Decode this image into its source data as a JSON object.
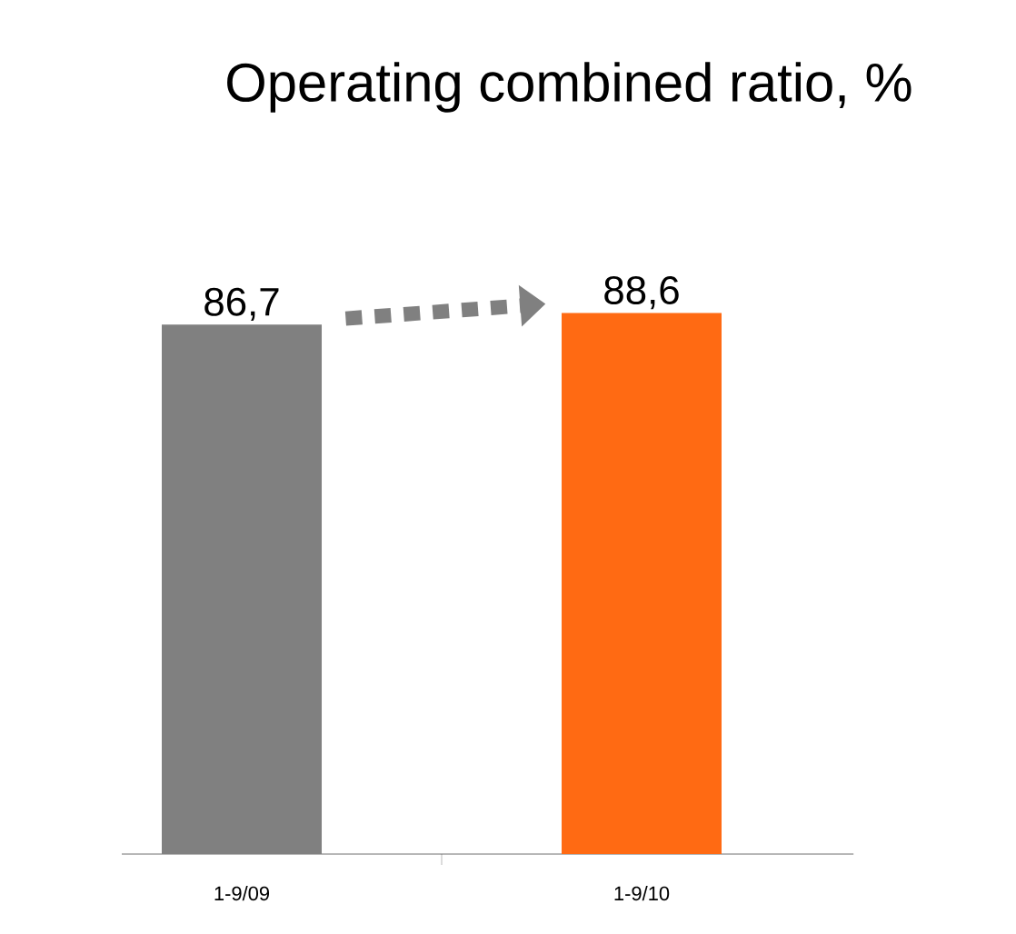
{
  "chart_data": {
    "type": "bar",
    "title": "Operating combined ratio, %",
    "categories": [
      "1-9/09",
      "1-9/10"
    ],
    "values": [
      86.7,
      88.6
    ],
    "colors": [
      "#808080",
      "#ff6a13"
    ],
    "value_labels": [
      "86,7",
      "88,6"
    ]
  }
}
